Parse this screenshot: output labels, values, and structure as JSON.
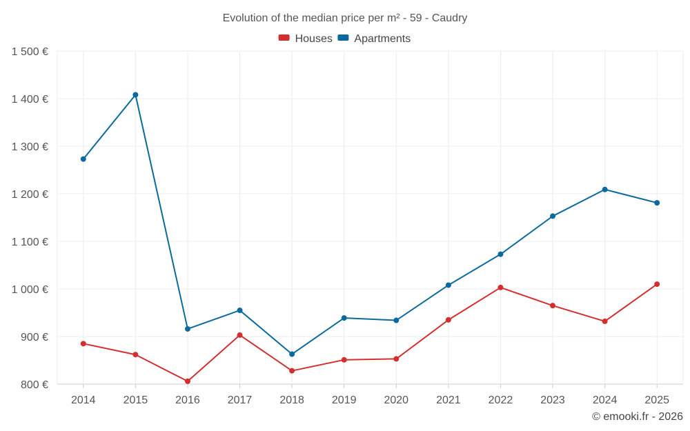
{
  "chart_data": {
    "type": "line",
    "title": "Evolution of the median price per m² - 59 - Caudry",
    "categories": [
      "2014",
      "2015",
      "2016",
      "2017",
      "2018",
      "2019",
      "2020",
      "2021",
      "2022",
      "2023",
      "2024",
      "2025"
    ],
    "series": [
      {
        "name": "Houses",
        "color": "#d32f2f",
        "values": [
          885,
          862,
          806,
          903,
          828,
          851,
          853,
          935,
          1003,
          965,
          932,
          1010
        ]
      },
      {
        "name": "Apartments",
        "color": "#0a6a9e",
        "values": [
          1273,
          1408,
          916,
          955,
          863,
          939,
          934,
          1008,
          1073,
          1153,
          1209,
          1181
        ]
      }
    ],
    "ylim": [
      800,
      1500
    ],
    "yticks": [
      800,
      900,
      1000,
      1100,
      1200,
      1300,
      1400,
      1500
    ],
    "ytick_labels": [
      "800 €",
      "900 €",
      "1 000 €",
      "1 100 €",
      "1 200 €",
      "1 300 €",
      "1 400 €",
      "1 500 €"
    ],
    "xlabel": "",
    "ylabel": "",
    "grid": true,
    "legend_position": "top-center"
  },
  "credit": "© emooki.fr - 2026"
}
